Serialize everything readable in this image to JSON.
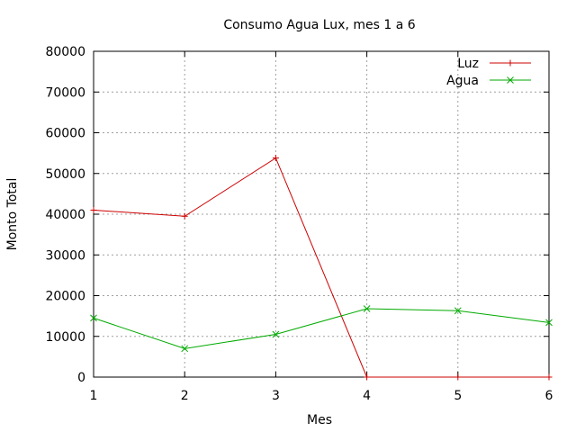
{
  "chart_data": {
    "type": "line",
    "title": "Consumo Agua Lux, mes 1 a 6",
    "xlabel": "Mes",
    "ylabel": "Monto Total",
    "x": [
      1,
      2,
      3,
      4,
      5,
      6
    ],
    "xlim": [
      1,
      6
    ],
    "ylim": [
      0,
      80000
    ],
    "xticks": [
      "1",
      "2",
      "3",
      "4",
      "5",
      "6"
    ],
    "yticks": [
      "0",
      "10000",
      "20000",
      "30000",
      "40000",
      "50000",
      "60000",
      "70000",
      "80000"
    ],
    "grid": true,
    "legend_position": "top-right",
    "series": [
      {
        "name": "Luz",
        "color": "#cc0000",
        "marker": "plus",
        "values": [
          41000,
          39500,
          53800,
          0,
          0,
          0
        ]
      },
      {
        "name": "Agua",
        "color": "#00aa00",
        "marker": "cross",
        "values": [
          14500,
          7000,
          10500,
          16800,
          16300,
          13400
        ]
      }
    ]
  }
}
